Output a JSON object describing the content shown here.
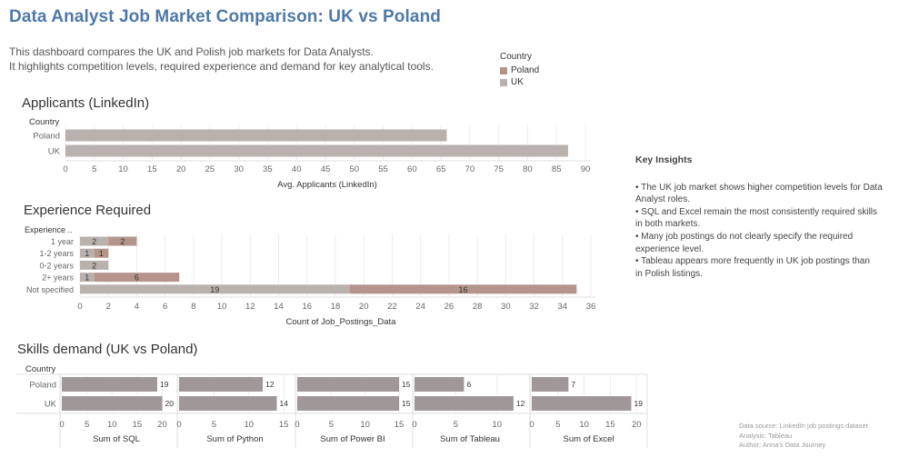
{
  "header": {
    "title": "Data Analyst Job Market Comparison: UK vs Poland",
    "desc_line1": "This dashboard compares the UK and Polish job markets for Data Analysts.",
    "desc_line2": "It highlights competition levels, required experience and demand for key analytical tools."
  },
  "legend": {
    "title": "Country",
    "items": [
      {
        "label": "Poland",
        "color": "#b5958b"
      },
      {
        "label": "UK",
        "color": "#b9b1ae"
      }
    ]
  },
  "insights": {
    "heading": "Key Insights",
    "lines": [
      "• The UK job market shows higher competition levels for Data",
      "Analyst roles.",
      "• SQL and Excel remain the most consistently required skills",
      "in both markets.",
      "• Many job postings do not clearly specify the required",
      "experience level.",
      "• Tableau appears more frequently in UK job postings than",
      "in Polish listings."
    ]
  },
  "source": {
    "line1": "Data source: LinkedIn job postings dataset",
    "line2": "Analysis: Tableau",
    "line3": "Author: Anna's Data Journey"
  },
  "chart_data": [
    {
      "type": "bar",
      "orientation": "horizontal",
      "title": "Applicants (LinkedIn)",
      "row_header": "Country",
      "categories": [
        "Poland",
        "UK"
      ],
      "values": [
        66,
        87
      ],
      "xlabel": "Avg. Applicants (LinkedIn)",
      "xlim": [
        0,
        90
      ],
      "ticks": [
        0,
        5,
        10,
        15,
        20,
        25,
        30,
        35,
        40,
        45,
        50,
        55,
        60,
        65,
        70,
        75,
        80,
        85,
        90
      ],
      "bar_color": "#b9b1ae"
    },
    {
      "type": "bar",
      "orientation": "horizontal",
      "stacked": true,
      "title": "Experience Required",
      "row_header": "Experience ..",
      "categories": [
        "1 year",
        "1-2 years",
        "0-2 years",
        "2+ years",
        "Not specified"
      ],
      "series": [
        {
          "name": "UK",
          "color": "#b9b1ae",
          "values": [
            2,
            1,
            2,
            1,
            19
          ]
        },
        {
          "name": "Poland",
          "color": "#b5958b",
          "values": [
            2,
            1,
            0,
            6,
            16
          ]
        }
      ],
      "xlabel": "Count of Job_Postings_Data",
      "xlim": [
        0,
        36
      ],
      "ticks": [
        0,
        2,
        4,
        6,
        8,
        10,
        12,
        14,
        16,
        18,
        20,
        22,
        24,
        26,
        28,
        30,
        32,
        34,
        36
      ]
    },
    {
      "type": "bar",
      "orientation": "horizontal",
      "small_multiples": true,
      "title": "Skills demand (UK vs Poland)",
      "row_header": "Country",
      "categories": [
        "Poland",
        "UK"
      ],
      "bar_color": "#a09898",
      "panels": [
        {
          "label": "Sum of SQL",
          "values": [
            19,
            20
          ],
          "ticks": [
            0,
            5,
            10,
            15,
            20
          ],
          "xlim": [
            0,
            21
          ]
        },
        {
          "label": "Sum of Python",
          "values": [
            12,
            14
          ],
          "ticks": [
            0,
            5,
            10,
            15
          ],
          "xlim": [
            0,
            15.5
          ]
        },
        {
          "label": "Sum of Power BI",
          "values": [
            15,
            15
          ],
          "ticks": [
            0,
            5,
            10,
            15
          ],
          "xlim": [
            0,
            15.8
          ]
        },
        {
          "label": "Sum of Tableau",
          "values": [
            6,
            12
          ],
          "ticks": [
            0,
            5,
            10
          ],
          "xlim": [
            0,
            13
          ]
        },
        {
          "label": "Sum of Excel",
          "values": [
            7,
            19
          ],
          "ticks": [
            0,
            5,
            10,
            15,
            20
          ],
          "xlim": [
            0,
            21
          ]
        }
      ]
    }
  ]
}
